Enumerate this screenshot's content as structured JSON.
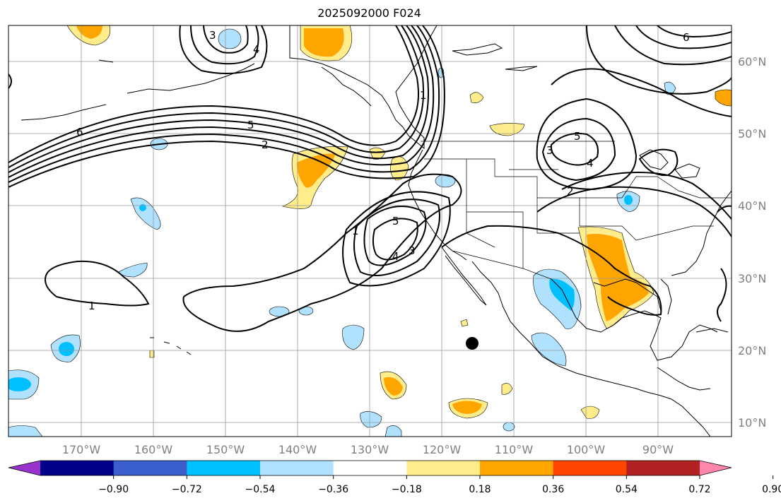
{
  "title": "2025092000 F024",
  "lat_labels": [
    "60°N",
    "50°N",
    "40°N",
    "30°N",
    "20°N",
    "10°N"
  ],
  "lon_labels": [
    "170°W",
    "160°W",
    "150°W",
    "140°W",
    "130°W",
    "120°W",
    "110°W",
    "100°W",
    "90°W"
  ],
  "colorbar": {
    "ticks": [
      "−0.90",
      "−0.72",
      "−0.54",
      "−0.36",
      "−0.18",
      "0.18",
      "0.36",
      "0.54",
      "0.72",
      "0.90"
    ],
    "colors": [
      "#9932cc",
      "#00008b",
      "#3a5fcd",
      "#00bfff",
      "#b0e2ff",
      "#ffffff",
      "#ffec8b",
      "#ffa500",
      "#ff4500",
      "#b22222",
      "#ff88aa"
    ]
  },
  "contour_labels": [
    "1",
    "1",
    "2",
    "3",
    "4",
    "5",
    "6",
    "5",
    "4",
    "3",
    "2",
    "1",
    "3",
    "4",
    "5",
    "6"
  ],
  "colors": {
    "neg_light": "#b0e2ff",
    "neg_mid": "#00bfff",
    "pos_light": "#ffec8b",
    "pos_mid": "#ffa500"
  }
}
